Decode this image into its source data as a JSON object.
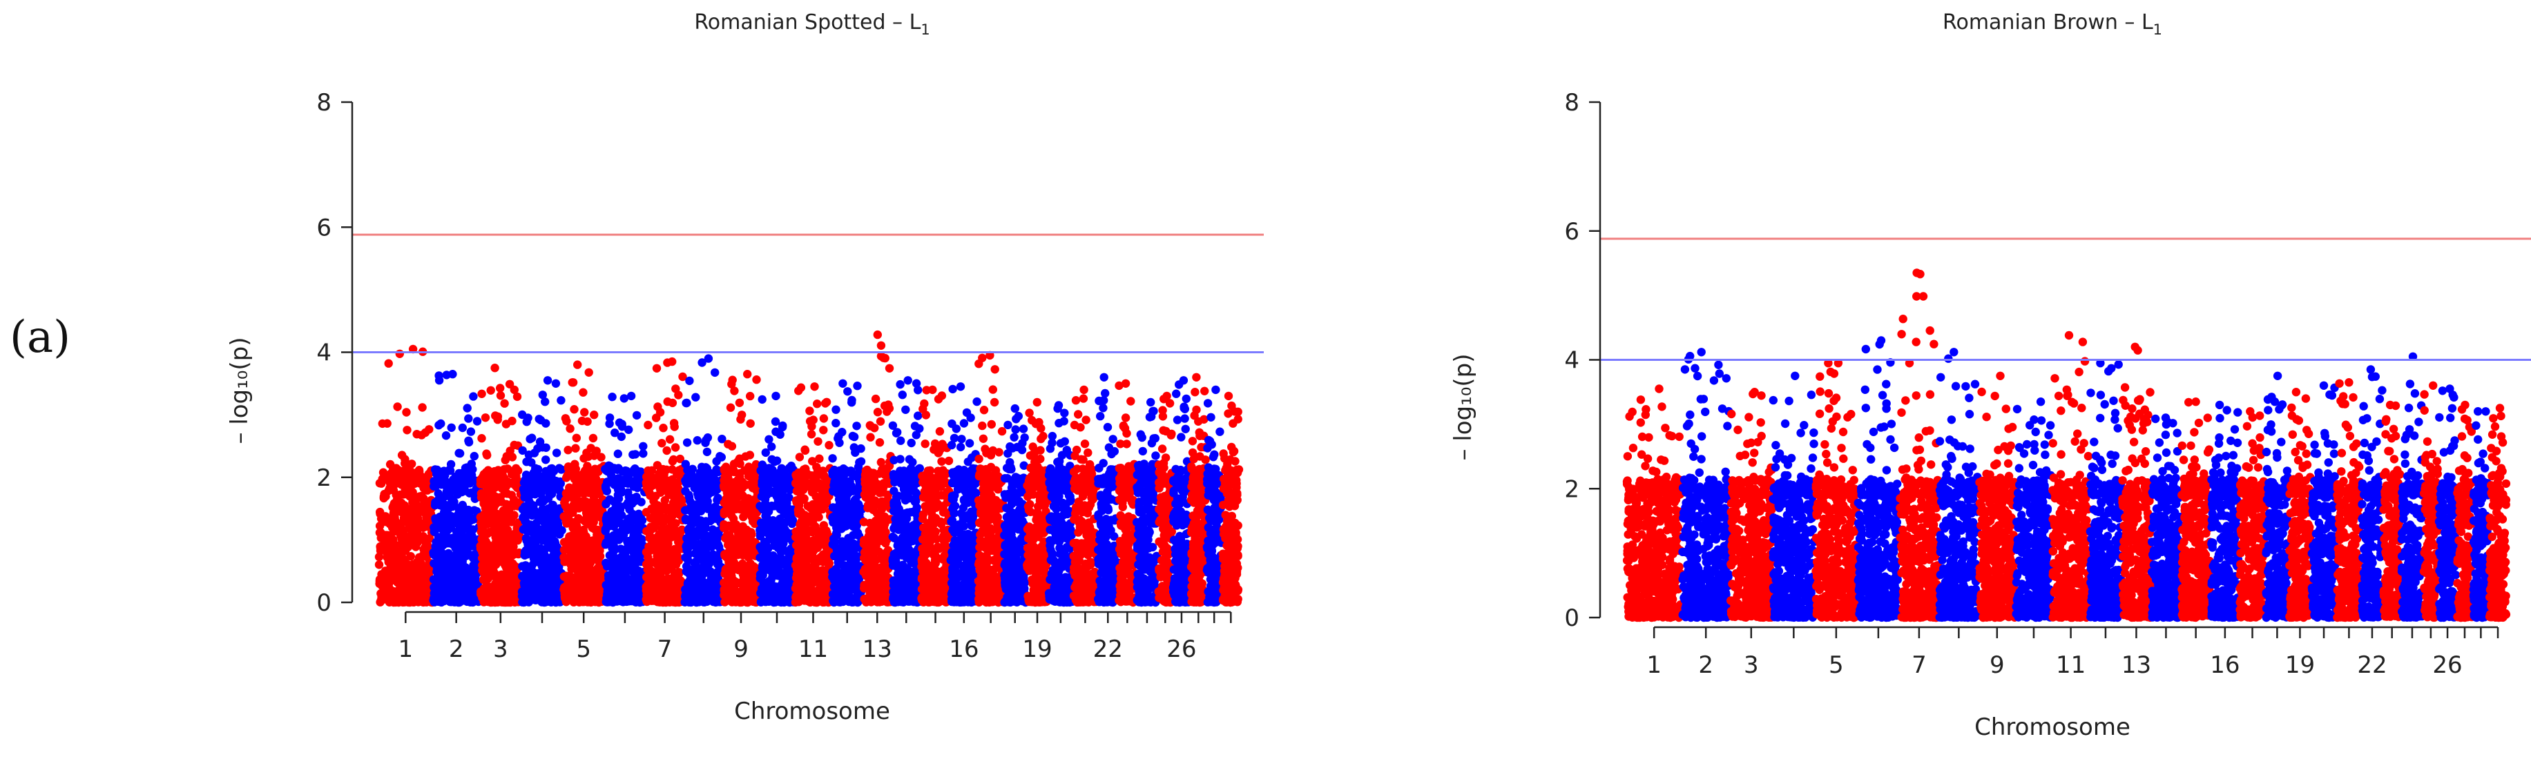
{
  "panel_label": "(a)",
  "chart_data": [
    {
      "type": "scatter",
      "title_main": "Romanian Spotted – L",
      "title_sub": "1",
      "xlabel": "Chromosome",
      "ylabel": "– log₁₀(p)",
      "ylim": [
        0,
        8
      ],
      "yticks": [
        "0",
        "2",
        "4",
        "6",
        "8"
      ],
      "grid": false,
      "n_chromosomes": 29,
      "chromosome_ticks": [
        "1",
        "2",
        "3",
        "5",
        "7",
        "9",
        "11",
        "13",
        "16",
        "19",
        "22",
        "26"
      ],
      "chromosome_tick_positions": [
        1,
        2,
        3,
        5,
        7,
        9,
        11,
        13,
        16,
        19,
        22,
        26
      ],
      "colors": [
        "#ff0000",
        "#0000ff"
      ],
      "thresholds": [
        {
          "name": "genome-wide",
          "value": 5.88,
          "color": "#f08080"
        },
        {
          "name": "suggestive",
          "value": 4.0,
          "color": "#7b7bff"
        }
      ],
      "chromosome_max": [
        4.05,
        3.65,
        3.75,
        3.55,
        3.8,
        3.3,
        3.85,
        3.9,
        3.65,
        3.3,
        3.45,
        3.5,
        4.28,
        3.55,
        3.4,
        3.45,
        3.95,
        3.1,
        3.2,
        3.15,
        3.4,
        3.6,
        3.5,
        3.2,
        3.3,
        3.55,
        3.6,
        3.4,
        3.3
      ]
    },
    {
      "type": "scatter",
      "title_main": "Romanian Brown – L",
      "title_sub": "1",
      "xlabel": "Chromosome",
      "ylabel": "– log₁₀(p)",
      "ylim": [
        0,
        8
      ],
      "yticks": [
        "0",
        "2",
        "4",
        "6",
        "8"
      ],
      "grid": false,
      "n_chromosomes": 29,
      "chromosome_ticks": [
        "1",
        "2",
        "3",
        "5",
        "7",
        "9",
        "11",
        "13",
        "16",
        "19",
        "22",
        "26"
      ],
      "chromosome_tick_positions": [
        1,
        2,
        3,
        5,
        7,
        9,
        11,
        13,
        16,
        19,
        22,
        26
      ],
      "colors": [
        "#ff0000",
        "#0000ff"
      ],
      "thresholds": [
        {
          "name": "genome-wide",
          "value": 5.88,
          "color": "#f08080"
        },
        {
          "name": "suggestive",
          "value": 4.0,
          "color": "#7b7bff"
        }
      ],
      "chromosome_max": [
        3.55,
        4.12,
        3.5,
        3.75,
        3.95,
        4.3,
        5.35,
        4.12,
        3.75,
        3.35,
        4.38,
        3.95,
        4.2,
        3.1,
        3.35,
        3.3,
        3.2,
        3.75,
        3.5,
        3.6,
        3.65,
        3.85,
        3.3,
        4.05,
        3.6,
        3.55,
        3.3,
        3.2,
        3.25
      ]
    }
  ]
}
